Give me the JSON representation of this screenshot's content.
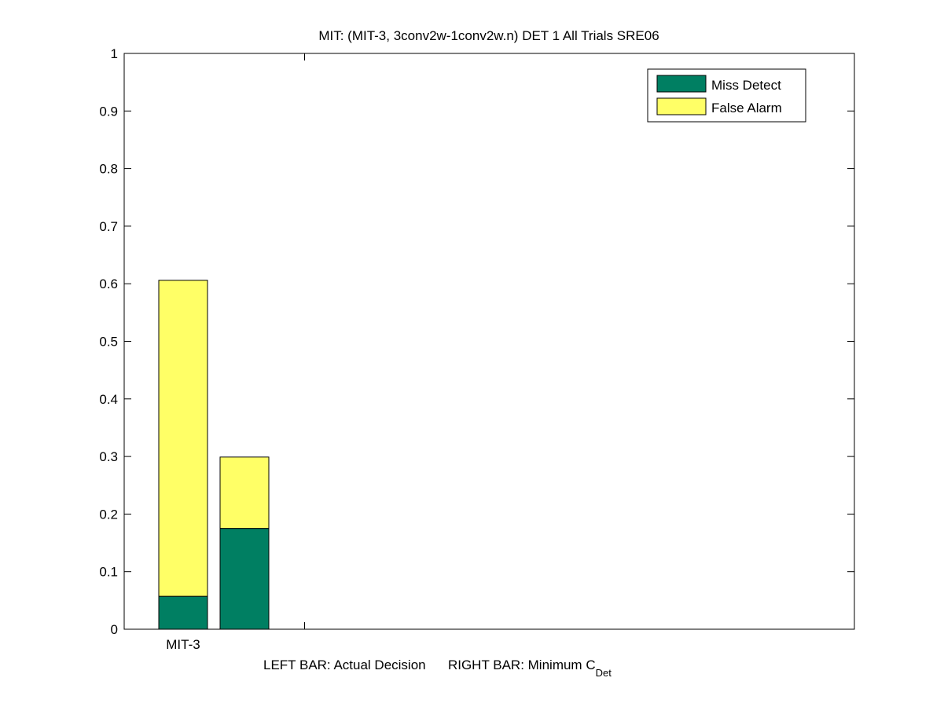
{
  "chart_data": {
    "type": "bar",
    "stacked": true,
    "title": "MIT: (MIT-3, 3conv2w-1conv2w.n) DET 1 All Trials SRE06",
    "xlabel_main": "LEFT BAR: Actual Decision      RIGHT BAR: Minimum C",
    "xlabel_sub": "Det",
    "categories": [
      "MIT-3"
    ],
    "bars": [
      {
        "role": "Actual Decision",
        "miss_detect": 0.057,
        "false_alarm": 0.549
      },
      {
        "role": "Minimum C_Det",
        "miss_detect": 0.175,
        "false_alarm": 0.124
      }
    ],
    "series": [
      {
        "name": "Miss Detect",
        "color": "#007f62"
      },
      {
        "name": "False Alarm",
        "color": "#ffff66"
      }
    ],
    "ylim": [
      0,
      1
    ],
    "yticks": [
      "0",
      "0.1",
      "0.2",
      "0.3",
      "0.4",
      "0.5",
      "0.6",
      "0.7",
      "0.8",
      "0.9",
      "1"
    ],
    "legend_position": "top-right",
    "grid": false
  }
}
